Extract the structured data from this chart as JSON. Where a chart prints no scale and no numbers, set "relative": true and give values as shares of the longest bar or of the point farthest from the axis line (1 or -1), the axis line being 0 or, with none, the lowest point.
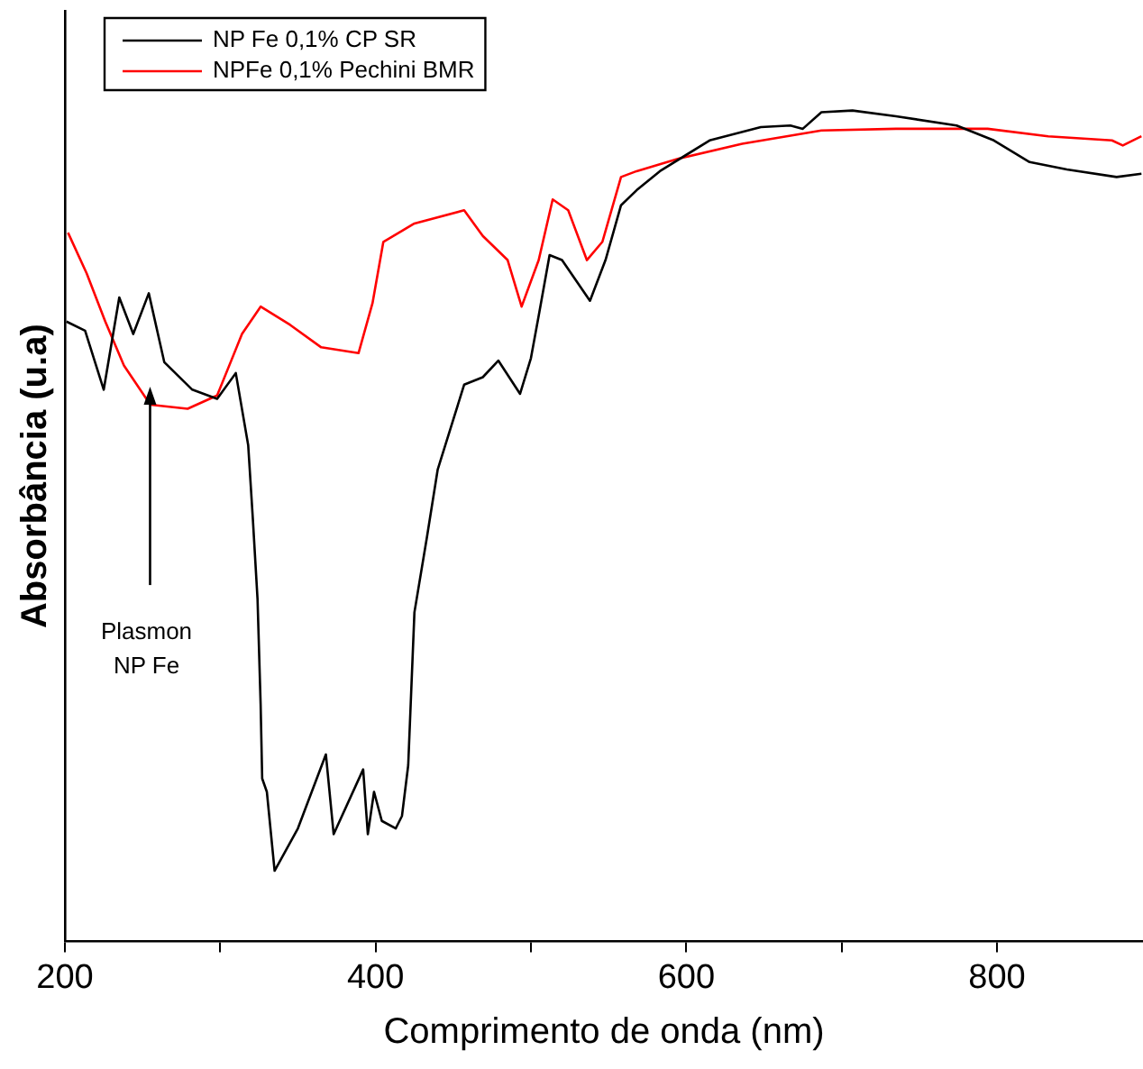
{
  "chart_data": {
    "type": "line",
    "xlabel": "Comprimento de onda (nm)",
    "ylabel": "Absorbância (u.a)",
    "relative": true,
    "xlim": [
      200,
      894
    ],
    "xticks": [
      200,
      {
        "value": 300,
        "label": null
      },
      400,
      {
        "value": 500,
        "label": null
      },
      600,
      {
        "value": 700,
        "label": null
      },
      800
    ],
    "legend": "top left",
    "grid": false,
    "marker": "none",
    "line_style": "solid",
    "annotations": [
      "Plasmon\nNP Fe"
    ],
    "series": [
      {
        "name": "NP Fe 0,1% CP SR",
        "color": "#000000",
        "x": [
          201,
          213,
          225,
          235,
          244,
          254,
          264,
          282,
          298,
          310,
          318,
          321,
          324,
          326,
          327,
          330,
          335,
          350,
          368,
          373,
          392,
          395,
          399,
          404,
          413,
          417,
          421,
          425,
          433,
          440,
          457,
          469,
          479,
          493,
          500,
          505,
          512,
          520,
          538,
          548,
          558,
          568,
          583,
          615,
          648,
          667,
          675,
          687,
          707,
          735,
          774,
          798,
          821,
          845,
          877,
          893
        ],
        "values": [
          0.746,
          0.735,
          0.664,
          0.775,
          0.731,
          0.78,
          0.697,
          0.664,
          0.653,
          0.684,
          0.597,
          0.508,
          0.412,
          0.285,
          0.196,
          0.18,
          0.085,
          0.136,
          0.225,
          0.129,
          0.207,
          0.129,
          0.18,
          0.145,
          0.136,
          0.151,
          0.212,
          0.396,
          0.486,
          0.568,
          0.67,
          0.679,
          0.699,
          0.659,
          0.702,
          0.753,
          0.826,
          0.82,
          0.771,
          0.82,
          0.886,
          0.904,
          0.927,
          0.964,
          0.98,
          0.982,
          0.978,
          0.998,
          1.0,
          0.993,
          0.982,
          0.964,
          0.938,
          0.929,
          0.92,
          0.924
        ]
      },
      {
        "name": "NPFe 0,1% Pechini BMR",
        "color": "#ff0000",
        "x": [
          202,
          214,
          226,
          238,
          255,
          279,
          298,
          314,
          326,
          345,
          365,
          389,
          398,
          405,
          425,
          457,
          469,
          485,
          494,
          505,
          514,
          524,
          536,
          546,
          558,
          568,
          595,
          636,
          687,
          735,
          794,
          833,
          874,
          881,
          893
        ],
        "values": [
          0.853,
          0.804,
          0.746,
          0.693,
          0.646,
          0.641,
          0.657,
          0.731,
          0.764,
          0.742,
          0.715,
          0.708,
          0.768,
          0.842,
          0.864,
          0.88,
          0.849,
          0.82,
          0.764,
          0.82,
          0.893,
          0.88,
          0.82,
          0.842,
          0.92,
          0.927,
          0.942,
          0.96,
          0.976,
          0.978,
          0.978,
          0.969,
          0.964,
          0.958,
          0.969
        ]
      }
    ]
  }
}
